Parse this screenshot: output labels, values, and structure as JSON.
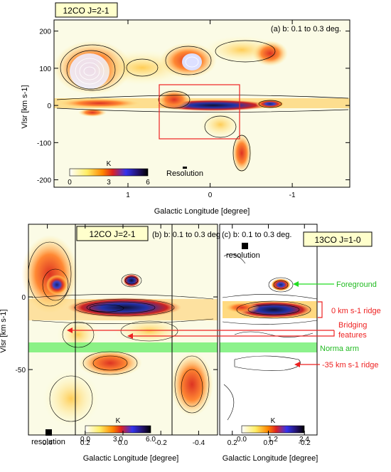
{
  "chart_data": [
    {
      "type": "heatmap",
      "title": "12CO J=2-1",
      "subtitle": "(a) b: 0.1 to 0.3 deg.",
      "xlabel": "Galactic Longitude [degree]",
      "ylabel": "Vlsr [km s-1]",
      "xlim": [
        1.9,
        -1.7
      ],
      "ylim": [
        -220,
        230
      ],
      "xticks": [
        1,
        0,
        -1
      ],
      "yticks": [
        200,
        100,
        0,
        -100,
        -200
      ],
      "colorbar": {
        "label": "K",
        "min": 0,
        "max": 6,
        "ticks": [
          0,
          3,
          6
        ]
      },
      "annotations": [
        "Resolution"
      ],
      "box": {
        "l": [
          0.6,
          -0.5
        ],
        "v": [
          -90,
          50
        ]
      }
    },
    {
      "type": "heatmap",
      "title": "12CO J=2-1",
      "subtitle": "(b) b: 0.1 to 0.3 deg.",
      "xlabel": "Galactic Longitude [degree]",
      "ylabel": "Vlsr [km s-1]",
      "xlim": [
        0.5,
        -0.5
      ],
      "ylim": [
        -95,
        50
      ],
      "xticks": [
        0.4,
        0.2,
        0.0,
        -0.2,
        -0.4
      ],
      "yticks": [
        0,
        -50
      ],
      "colorbar": {
        "label": "K",
        "min": 0,
        "max": 6,
        "ticks": [
          0.0,
          3.0,
          6.0
        ]
      },
      "annotations": [
        "resolution"
      ]
    },
    {
      "type": "heatmap",
      "title": "13CO J=1-0",
      "subtitle": "(c) b: 0.1 to 0.3 deg.",
      "xlabel": "Galactic Longitude [degree]",
      "xlim": [
        0.27,
        -0.27
      ],
      "ylim": [
        -95,
        50
      ],
      "xticks": [
        0.2,
        0.0,
        -0.2
      ],
      "colorbar": {
        "label": "K",
        "min": 0,
        "max": 2.4,
        "ticks": [
          0.0,
          1.2,
          2.4
        ]
      },
      "annotations": [
        "resolution"
      ]
    }
  ],
  "labels": {
    "foreground": "Foreground",
    "ridge0": "0 km s-1 ridge",
    "bridging1": "Bridging",
    "bridging2": "features",
    "norma": "Norma arm",
    "ridge35": "-35 km s-1 ridge"
  },
  "colors": {
    "green": "#22dd22",
    "red": "#ee2222",
    "badge_bg": "#ffffcc",
    "norma_band": "#66ee66"
  }
}
